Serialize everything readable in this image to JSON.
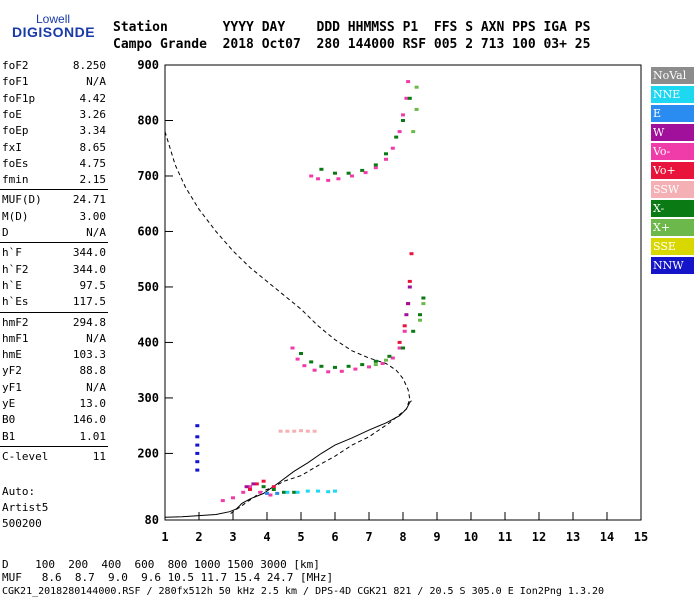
{
  "logo": {
    "line1": "Lowell",
    "line2": "DIGISONDE"
  },
  "header": {
    "row1": "Station       YYYY DAY    DDD HHMMSS P1  FFS S AXN PPS IGA PS",
    "row2": "Campo Grande  2018 Oct07  280 144000 RSF 005 2 713 100 03+ 25"
  },
  "params": [
    {
      "name": "foF2",
      "value": "8.250"
    },
    {
      "name": "foF1",
      "value": "N/A"
    },
    {
      "name": "foF1p",
      "value": "4.42"
    },
    {
      "name": "foE",
      "value": "3.26"
    },
    {
      "name": "foEp",
      "value": "3.34"
    },
    {
      "name": "fxI",
      "value": "8.65"
    },
    {
      "name": "foEs",
      "value": "4.75"
    },
    {
      "name": "fmin",
      "value": "2.15"
    },
    {
      "name": "MUF(D)",
      "value": "24.71"
    },
    {
      "name": "M(D)",
      "value": "3.00"
    },
    {
      "name": "D",
      "value": "N/A"
    },
    {
      "name": "h`F",
      "value": "344.0"
    },
    {
      "name": "h`F2",
      "value": "344.0"
    },
    {
      "name": "h`E",
      "value": "97.5"
    },
    {
      "name": "h`Es",
      "value": "117.5"
    },
    {
      "name": "hmF2",
      "value": "294.8"
    },
    {
      "name": "hmF1",
      "value": "N/A"
    },
    {
      "name": "hmE",
      "value": "103.3"
    },
    {
      "name": "yF2",
      "value": "88.8"
    },
    {
      "name": "yF1",
      "value": "N/A"
    },
    {
      "name": "yE",
      "value": "13.0"
    },
    {
      "name": "B0",
      "value": "146.0"
    },
    {
      "name": "B1",
      "value": "1.01"
    },
    {
      "name": "C-level",
      "value": "11"
    }
  ],
  "auto": {
    "line1": "Auto:",
    "line2": "Artist5",
    "line3": "500200"
  },
  "legend": [
    {
      "label": "NoVal",
      "color": "#8c8c8c"
    },
    {
      "label": "NNE",
      "color": "#1ed8f2"
    },
    {
      "label": "E",
      "color": "#2a8cf0"
    },
    {
      "label": "W",
      "color": "#a0109a"
    },
    {
      "label": "Vo-",
      "color": "#f03ca8"
    },
    {
      "label": "Vo+",
      "color": "#e8143c"
    },
    {
      "label": "SSW",
      "color": "#f4b0b4"
    },
    {
      "label": "X-",
      "color": "#0a7a14"
    },
    {
      "label": "X+",
      "color": "#6cb84a"
    },
    {
      "label": "SSE",
      "color": "#d8d800"
    },
    {
      "label": "NNW",
      "color": "#1414c8"
    }
  ],
  "footer": {
    "d_row": "D    100  200  400  600  800 1000 1500 3000 [km]",
    "muf_row": "MUF   8.6  8.7  9.0  9.6 10.5 11.7 15.4 24.7 [MHz]",
    "file_row": "CGK21_2018280144000.RSF / 280fx512h 50 kHz 2.5 km / DPS-4D CGK21 821 / 20.5 S 305.0 E Ion2Png 1.3.20"
  },
  "chart_data": {
    "type": "scatter",
    "xlim": [
      1,
      15
    ],
    "ylim": [
      80,
      900
    ],
    "x_ticks": [
      1,
      2,
      3,
      4,
      5,
      6,
      7,
      8,
      9,
      10,
      11,
      12,
      13,
      14,
      15
    ],
    "y_ticks": [
      80,
      200,
      300,
      400,
      500,
      600,
      700,
      800,
      900
    ],
    "grid": false,
    "legend_position": "right",
    "series": [
      {
        "name": "Vo-",
        "color": "#f03ca8",
        "points": [
          [
            5.3,
            700
          ],
          [
            5.5,
            695
          ],
          [
            5.8,
            692
          ],
          [
            6.1,
            695
          ],
          [
            6.5,
            700
          ],
          [
            6.9,
            706
          ],
          [
            7.2,
            715
          ],
          [
            7.5,
            730
          ],
          [
            7.7,
            750
          ],
          [
            7.9,
            780
          ],
          [
            8.0,
            810
          ],
          [
            8.1,
            840
          ],
          [
            8.15,
            870
          ],
          [
            4.75,
            390
          ],
          [
            4.9,
            370
          ],
          [
            5.1,
            358
          ],
          [
            5.4,
            350
          ],
          [
            5.8,
            347
          ],
          [
            6.2,
            348
          ],
          [
            6.6,
            352
          ],
          [
            7.0,
            356
          ],
          [
            7.4,
            362
          ],
          [
            7.7,
            372
          ],
          [
            7.9,
            390
          ],
          [
            8.05,
            420
          ],
          [
            2.7,
            115
          ],
          [
            3.0,
            120
          ],
          [
            3.3,
            130
          ],
          [
            3.5,
            140
          ],
          [
            3.8,
            130
          ],
          [
            4.1,
            125
          ]
        ]
      },
      {
        "name": "Vo+",
        "color": "#e8143c",
        "points": [
          [
            7.9,
            400
          ],
          [
            8.05,
            430
          ],
          [
            8.15,
            470
          ],
          [
            8.2,
            510
          ],
          [
            8.25,
            560
          ],
          [
            3.5,
            135
          ],
          [
            3.7,
            145
          ],
          [
            3.9,
            150
          ],
          [
            4.2,
            140
          ]
        ]
      },
      {
        "name": "W",
        "color": "#a0109a",
        "points": [
          [
            8.2,
            500
          ],
          [
            8.15,
            470
          ],
          [
            8.1,
            450
          ],
          [
            3.4,
            140
          ],
          [
            3.6,
            145
          ]
        ]
      },
      {
        "name": "X-",
        "color": "#0a7a14",
        "points": [
          [
            5.6,
            712
          ],
          [
            6.0,
            705
          ],
          [
            6.4,
            705
          ],
          [
            6.8,
            710
          ],
          [
            7.2,
            720
          ],
          [
            7.5,
            740
          ],
          [
            7.8,
            770
          ],
          [
            8.0,
            800
          ],
          [
            8.2,
            840
          ],
          [
            5.0,
            380
          ],
          [
            5.3,
            365
          ],
          [
            5.6,
            357
          ],
          [
            6.0,
            355
          ],
          [
            6.4,
            357
          ],
          [
            6.8,
            360
          ],
          [
            7.2,
            366
          ],
          [
            7.6,
            375
          ],
          [
            8.0,
            390
          ],
          [
            8.3,
            420
          ],
          [
            8.5,
            450
          ],
          [
            8.6,
            480
          ],
          [
            3.9,
            140
          ],
          [
            4.2,
            135
          ],
          [
            4.5,
            130
          ],
          [
            4.8,
            130
          ]
        ]
      },
      {
        "name": "X+",
        "color": "#6cb84a",
        "points": [
          [
            8.3,
            780
          ],
          [
            8.4,
            820
          ],
          [
            8.4,
            860
          ],
          [
            8.6,
            470
          ],
          [
            8.5,
            440
          ],
          [
            7.2,
            360
          ],
          [
            7.5,
            368
          ]
        ]
      },
      {
        "name": "NNE",
        "color": "#1ed8f2",
        "points": [
          [
            4.6,
            130
          ],
          [
            4.9,
            130
          ],
          [
            5.2,
            132
          ],
          [
            5.5,
            132
          ],
          [
            5.8,
            131
          ],
          [
            6.0,
            132
          ]
        ]
      },
      {
        "name": "E",
        "color": "#2a8cf0",
        "points": [
          [
            4.0,
            128
          ],
          [
            4.3,
            128
          ]
        ]
      },
      {
        "name": "NNW",
        "color": "#1414c8",
        "points": [
          [
            1.95,
            170
          ],
          [
            1.95,
            185
          ],
          [
            1.95,
            200
          ],
          [
            1.95,
            215
          ],
          [
            1.95,
            230
          ],
          [
            1.95,
            250
          ]
        ]
      },
      {
        "name": "SSW",
        "color": "#f4b0b4",
        "points": [
          [
            4.4,
            240
          ],
          [
            4.6,
            240
          ],
          [
            4.8,
            240
          ],
          [
            5.0,
            241
          ],
          [
            5.2,
            240
          ],
          [
            5.4,
            240
          ]
        ]
      }
    ],
    "curves": [
      {
        "name": "virtual-height-profile",
        "style": "dashed",
        "points": [
          [
            1,
            780
          ],
          [
            1.3,
            720
          ],
          [
            1.6,
            680
          ],
          [
            2.0,
            640
          ],
          [
            2.5,
            600
          ],
          [
            3.0,
            565
          ],
          [
            3.5,
            535
          ],
          [
            4.0,
            510
          ],
          [
            4.5,
            485
          ],
          [
            5.0,
            460
          ],
          [
            5.5,
            430
          ],
          [
            6.0,
            405
          ],
          [
            6.5,
            385
          ],
          [
            7.0,
            372
          ],
          [
            7.5,
            362
          ],
          [
            7.8,
            350
          ],
          [
            8.0,
            335
          ],
          [
            8.15,
            315
          ],
          [
            8.2,
            298
          ],
          [
            8.1,
            280
          ],
          [
            7.6,
            255
          ],
          [
            7.0,
            230
          ],
          [
            6.5,
            215
          ],
          [
            6.0,
            195
          ],
          [
            5.5,
            178
          ],
          [
            5.0,
            160
          ],
          [
            4.5,
            150
          ],
          [
            4.2,
            140
          ],
          [
            4.0,
            135
          ],
          [
            3.8,
            130
          ],
          [
            3.6,
            120
          ],
          [
            3.4,
            112
          ],
          [
            3.2,
            103
          ],
          [
            3.0,
            95
          ],
          [
            2.9,
            90
          ]
        ]
      },
      {
        "name": "true-height-profile",
        "style": "solid",
        "points": [
          [
            1,
            85
          ],
          [
            1.5,
            86
          ],
          [
            2.0,
            88
          ],
          [
            2.5,
            90
          ],
          [
            2.9,
            95
          ],
          [
            3.1,
            100
          ],
          [
            3.2,
            106
          ],
          [
            3.26,
            110
          ],
          [
            3.5,
            118
          ],
          [
            3.9,
            128
          ],
          [
            4.3,
            145
          ],
          [
            4.8,
            168
          ],
          [
            5.2,
            183
          ],
          [
            5.6,
            200
          ],
          [
            6.0,
            215
          ],
          [
            6.5,
            228
          ],
          [
            7.0,
            242
          ],
          [
            7.5,
            255
          ],
          [
            7.9,
            268
          ],
          [
            8.1,
            280
          ],
          [
            8.2,
            292
          ],
          [
            8.25,
            295
          ]
        ]
      }
    ]
  }
}
